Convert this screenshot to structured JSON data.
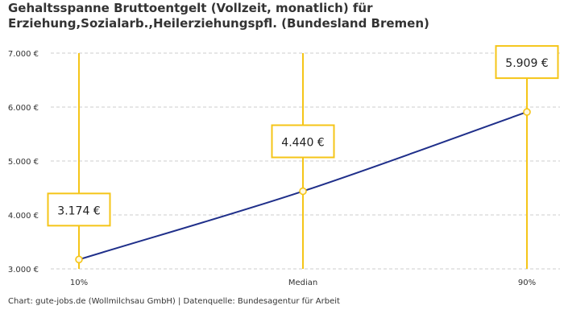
{
  "chart_data": {
    "type": "line",
    "title_line1": "Gehaltsspanne Bruttoentgelt (Vollzeit, monatlich) für",
    "title_line2": "Erziehung,Sozialarb.,Heilerziehungspfl. (Bundesland Bremen)",
    "categories": [
      "10%",
      "Median",
      "90%"
    ],
    "values": [
      3174,
      4440,
      5909
    ],
    "data_labels": [
      "3.174 €",
      "4.440 €",
      "5.909 €"
    ],
    "yticks": [
      3000,
      4000,
      5000,
      6000,
      7000
    ],
    "ytick_labels": [
      "3.000 €",
      "4.000 €",
      "5.000 €",
      "6.000 €",
      "7.000 €"
    ],
    "ylim": [
      3000,
      7000
    ],
    "grid": true,
    "colors": {
      "line": "#1f2f8a",
      "marker": "#f5c518",
      "grid": "#cccccc"
    }
  },
  "source": "Chart: gute-jobs.de (Wollmilchsau GmbH) | Datenquelle: Bundesagentur für Arbeit"
}
